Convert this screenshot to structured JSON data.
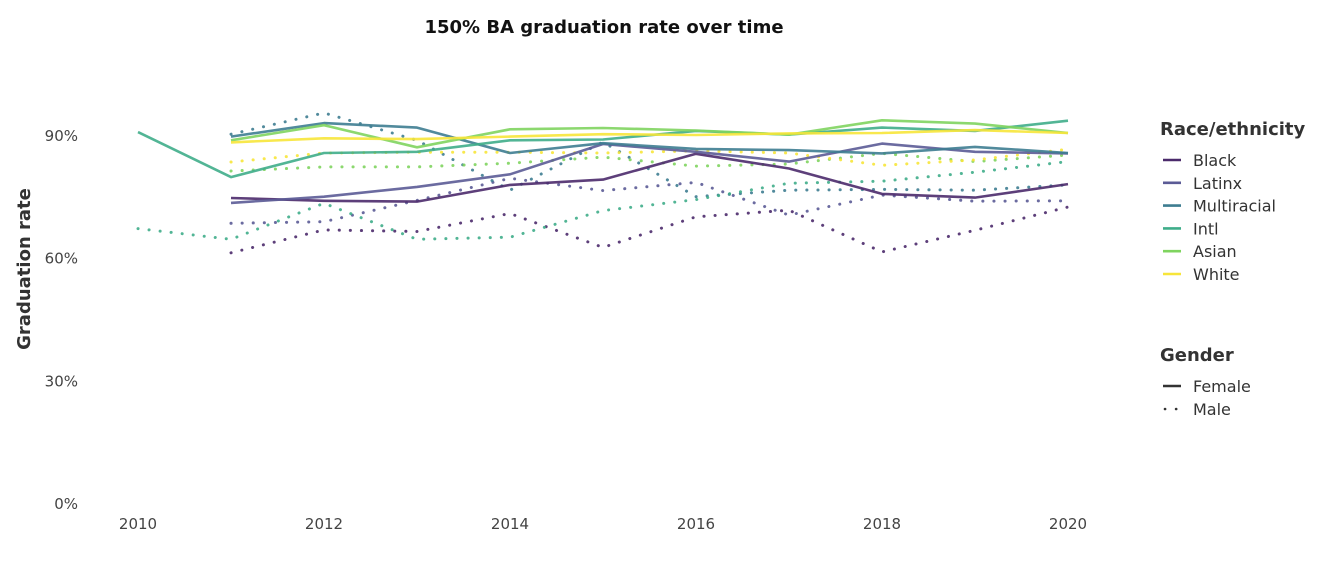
{
  "chart_data": {
    "type": "line",
    "title": "150% BA graduation rate over time",
    "xlabel": "",
    "ylabel": "Graduation rate",
    "xlim": [
      2010,
      2020
    ],
    "ylim": [
      0,
      90
    ],
    "x_ticks": [
      2010,
      2012,
      2014,
      2016,
      2018,
      2020
    ],
    "x_tick_labels": [
      "2010",
      "2012",
      "2014",
      "2016",
      "2018",
      "2020"
    ],
    "y_ticks": [
      0,
      30,
      60,
      90
    ],
    "y_tick_labels": [
      "0%",
      "30%",
      "60%",
      "90%"
    ],
    "grid": false,
    "legend_position": "right",
    "legends": [
      {
        "title": "Race/ethnicity",
        "entries": [
          {
            "label": "Black",
            "color": "#4b2a6b"
          },
          {
            "label": "Latinx",
            "color": "#5b5b96"
          },
          {
            "label": "Multiracial",
            "color": "#3e7d91"
          },
          {
            "label": "Intl",
            "color": "#3fad8a"
          },
          {
            "label": "Asian",
            "color": "#7fd45f"
          },
          {
            "label": "White",
            "color": "#f7e53a"
          }
        ]
      },
      {
        "title": "Gender",
        "entries": [
          {
            "label": "Female",
            "style": "solid",
            "color": "#333333"
          },
          {
            "label": "Male",
            "style": "dotted",
            "color": "#333333"
          }
        ]
      }
    ],
    "series": [
      {
        "name": "Black - Female",
        "group": "Black",
        "gender": "Female",
        "x": [
          2011,
          2012,
          2013,
          2014,
          2015,
          2016,
          2017,
          2018,
          2019,
          2020
        ],
        "values": [
          74.6,
          73.9,
          73.7,
          77.8,
          79.1,
          85.4,
          81.8,
          75.6,
          74.7,
          78.0
        ]
      },
      {
        "name": "Latinx - Female",
        "group": "Latinx",
        "gender": "Female",
        "x": [
          2011,
          2012,
          2013,
          2014,
          2015,
          2016,
          2017,
          2018,
          2019,
          2020
        ],
        "values": [
          73.4,
          74.9,
          77.3,
          80.4,
          87.8,
          85.9,
          83.5,
          87.9,
          85.9,
          85.5
        ]
      },
      {
        "name": "Multiracial - Female",
        "group": "Multiracial",
        "gender": "Female",
        "x": [
          2011,
          2012,
          2013,
          2014,
          2015,
          2016,
          2017,
          2018,
          2019,
          2020
        ],
        "values": [
          89.6,
          92.9,
          91.8,
          85.6,
          88.0,
          86.6,
          86.3,
          85.5,
          87.1,
          85.6
        ]
      },
      {
        "name": "Intl - Female",
        "group": "Intl",
        "gender": "Female",
        "x": [
          2010,
          2011,
          2012,
          2013,
          2014,
          2015,
          2016,
          2017,
          2018,
          2019,
          2020
        ],
        "values": [
          90.7,
          79.7,
          85.6,
          85.9,
          88.7,
          88.9,
          91.0,
          90.1,
          91.8,
          91.0,
          93.5
        ]
      },
      {
        "name": "Asian - Female",
        "group": "Asian",
        "gender": "Female",
        "x": [
          2011,
          2012,
          2013,
          2014,
          2015,
          2016,
          2017,
          2018,
          2019,
          2020
        ],
        "values": [
          88.7,
          92.4,
          87.0,
          91.4,
          91.7,
          91.1,
          90.1,
          93.6,
          92.8,
          90.5
        ]
      },
      {
        "name": "White - Female",
        "group": "White",
        "gender": "Female",
        "x": [
          2011,
          2012,
          2013,
          2014,
          2015,
          2016,
          2017,
          2018,
          2019,
          2020
        ],
        "values": [
          88.2,
          89.2,
          89.0,
          89.6,
          90.2,
          90.0,
          90.4,
          90.5,
          91.2,
          90.5
        ]
      },
      {
        "name": "Black - Male",
        "group": "Black",
        "gender": "Male",
        "x": [
          2011,
          2012,
          2013,
          2014,
          2015,
          2016,
          2017,
          2018,
          2019,
          2020
        ],
        "values": [
          61.2,
          66.8,
          66.4,
          70.8,
          62.5,
          70.0,
          71.6,
          61.4,
          66.7,
          72.4
        ]
      },
      {
        "name": "Latinx - Male",
        "group": "Latinx",
        "gender": "Male",
        "x": [
          2011,
          2012,
          2013,
          2014,
          2015,
          2016,
          2017,
          2018,
          2019,
          2020
        ],
        "values": [
          68.4,
          68.8,
          74.0,
          79.4,
          76.4,
          78.4,
          70.4,
          75.3,
          73.8,
          73.9
        ]
      },
      {
        "name": "Multiracial - Male",
        "group": "Multiracial",
        "gender": "Male",
        "x": [
          2011,
          2012,
          2013,
          2014,
          2015,
          2016,
          2017,
          2018,
          2019,
          2020
        ],
        "values": [
          90.2,
          95.4,
          88.7,
          76.5,
          88.3,
          74.9,
          76.5,
          76.7,
          76.5,
          77.8
        ]
      },
      {
        "name": "Intl - Male",
        "group": "Intl",
        "gender": "Male",
        "x": [
          2010,
          2011,
          2012,
          2013,
          2014,
          2015,
          2016,
          2017,
          2018,
          2019,
          2020
        ],
        "values": [
          67.1,
          64.5,
          73.3,
          64.5,
          65.0,
          71.5,
          74.2,
          78.2,
          78.7,
          80.9,
          83.5
        ]
      },
      {
        "name": "Asian - Male",
        "group": "Asian",
        "gender": "Male",
        "x": [
          2011,
          2012,
          2013,
          2014,
          2015,
          2016,
          2017,
          2018,
          2019,
          2020
        ],
        "values": [
          81.2,
          82.2,
          82.2,
          83.1,
          84.6,
          82.4,
          82.9,
          85.5,
          83.5,
          85.1
        ]
      },
      {
        "name": "White - Male",
        "group": "White",
        "gender": "Male",
        "x": [
          2011,
          2012,
          2013,
          2014,
          2015,
          2016,
          2017,
          2018,
          2019,
          2020
        ],
        "values": [
          83.4,
          85.6,
          85.8,
          85.8,
          85.6,
          86.1,
          85.6,
          82.6,
          83.9,
          86.5
        ]
      }
    ]
  }
}
